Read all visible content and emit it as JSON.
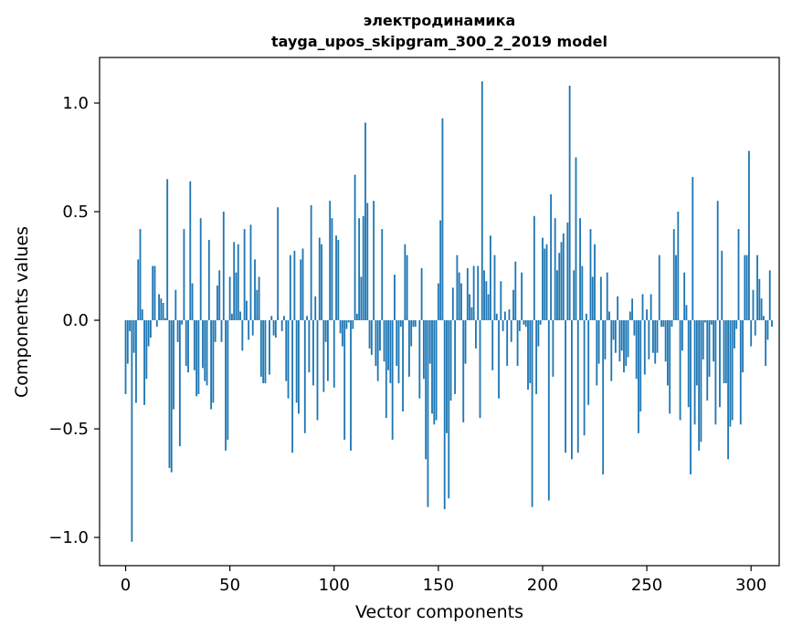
{
  "chart_data": {
    "type": "bar",
    "title": "электродинамика",
    "subtitle": "tayga_upos_skipgram_300_2_2019 model",
    "xlabel": "Vector components",
    "ylabel": "Components values",
    "xlim": [
      -12.5,
      313.5
    ],
    "ylim": [
      -1.13,
      1.21
    ],
    "xticks": [
      0,
      50,
      100,
      150,
      200,
      250,
      300
    ],
    "xtick_labels": [
      "0",
      "50",
      "100",
      "150",
      "200",
      "250",
      "300"
    ],
    "yticks": [
      -1.0,
      -0.5,
      0.0,
      0.5,
      1.0
    ],
    "ytick_labels": [
      "−1.0",
      "−0.5",
      "0.0",
      "0.5",
      "1.0"
    ],
    "bar_color": "#1f77b4",
    "values": [
      -0.34,
      -0.2,
      -0.05,
      -1.02,
      -0.15,
      -0.38,
      0.28,
      0.42,
      0.05,
      -0.39,
      -0.27,
      -0.12,
      -0.08,
      0.25,
      0.25,
      -0.03,
      0.12,
      0.1,
      0.08,
      0.01,
      0.65,
      -0.68,
      -0.7,
      -0.41,
      0.14,
      -0.1,
      -0.58,
      -0.02,
      0.42,
      -0.21,
      -0.24,
      0.64,
      0.17,
      -0.23,
      -0.35,
      -0.34,
      0.47,
      -0.22,
      -0.28,
      -0.3,
      0.37,
      -0.41,
      -0.38,
      -0.1,
      0.16,
      0.23,
      -0.1,
      0.5,
      -0.6,
      -0.55,
      0.2,
      0.03,
      0.36,
      0.22,
      0.35,
      0.04,
      -0.14,
      0.42,
      0.09,
      -0.09,
      0.44,
      -0.07,
      0.28,
      0.14,
      0.2,
      -0.26,
      -0.29,
      -0.29,
      0.0,
      -0.25,
      0.02,
      -0.07,
      -0.08,
      0.52,
      0.0,
      -0.05,
      0.02,
      -0.28,
      -0.36,
      0.3,
      -0.61,
      0.32,
      -0.38,
      -0.43,
      0.28,
      0.33,
      -0.52,
      0.02,
      -0.24,
      0.53,
      -0.3,
      0.11,
      -0.46,
      0.38,
      0.35,
      -0.33,
      -0.1,
      -0.28,
      0.55,
      0.47,
      -0.31,
      0.39,
      0.37,
      -0.06,
      -0.12,
      -0.55,
      -0.04,
      -0.01,
      -0.6,
      -0.04,
      0.67,
      0.03,
      0.47,
      0.2,
      0.48,
      0.91,
      0.54,
      -0.13,
      -0.16,
      0.55,
      -0.21,
      -0.28,
      -0.14,
      0.42,
      -0.19,
      -0.45,
      -0.23,
      -0.29,
      -0.55,
      0.21,
      -0.21,
      -0.29,
      -0.03,
      -0.42,
      0.35,
      0.3,
      -0.26,
      -0.12,
      -0.03,
      -0.03,
      0.0,
      -0.36,
      0.24,
      -0.27,
      -0.64,
      -0.86,
      -0.2,
      -0.43,
      -0.48,
      -0.46,
      0.17,
      0.46,
      0.93,
      -0.87,
      -0.52,
      -0.82,
      -0.37,
      0.15,
      -0.34,
      0.3,
      0.22,
      0.17,
      -0.47,
      -0.2,
      0.24,
      0.12,
      0.06,
      0.25,
      -0.13,
      0.25,
      -0.45,
      1.1,
      0.23,
      0.18,
      0.12,
      0.39,
      -0.23,
      0.3,
      0.03,
      -0.36,
      0.18,
      -0.05,
      0.04,
      -0.21,
      0.05,
      -0.1,
      0.14,
      0.27,
      -0.21,
      -0.05,
      0.22,
      -0.02,
      -0.03,
      -0.32,
      -0.29,
      -0.86,
      0.48,
      -0.34,
      -0.12,
      -0.02,
      0.38,
      0.33,
      0.35,
      -0.83,
      0.58,
      -0.26,
      0.47,
      0.23,
      0.31,
      0.36,
      0.4,
      -0.61,
      0.45,
      1.08,
      -0.64,
      0.23,
      0.75,
      -0.61,
      0.47,
      0.25,
      -0.53,
      0.03,
      -0.39,
      0.42,
      0.2,
      0.35,
      -0.3,
      -0.2,
      0.2,
      -0.71,
      -0.18,
      0.22,
      0.04,
      -0.28,
      -0.09,
      -0.15,
      0.11,
      -0.19,
      -0.14,
      -0.24,
      -0.21,
      -0.17,
      0.04,
      0.1,
      -0.07,
      -0.27,
      -0.52,
      -0.42,
      0.12,
      -0.25,
      0.05,
      -0.18,
      0.12,
      -0.15,
      -0.2,
      -0.15,
      0.3,
      -0.03,
      -0.03,
      -0.19,
      -0.3,
      -0.43,
      -0.03,
      0.42,
      0.3,
      0.5,
      -0.46,
      -0.14,
      0.22,
      0.07,
      -0.4,
      -0.71,
      0.66,
      -0.48,
      -0.3,
      -0.6,
      -0.56,
      -0.18,
      -0.01,
      -0.37,
      -0.26,
      -0.02,
      -0.19,
      -0.48,
      0.55,
      -0.4,
      0.32,
      -0.29,
      -0.29,
      -0.64,
      -0.49,
      -0.46,
      -0.13,
      -0.04,
      0.42,
      -0.48,
      -0.24,
      0.3,
      0.3,
      0.78,
      -0.12,
      0.14,
      -0.07,
      0.3,
      0.19,
      0.1,
      0.02,
      -0.21,
      -0.09,
      0.23,
      -0.03
    ]
  }
}
